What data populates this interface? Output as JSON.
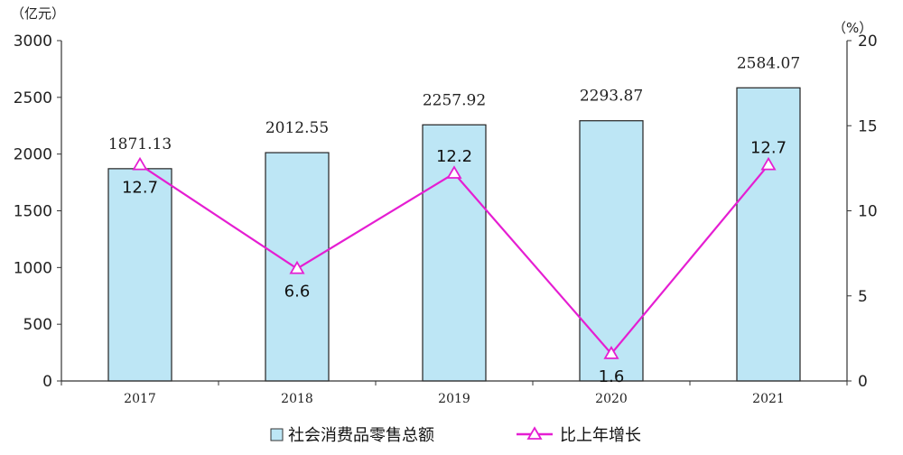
{
  "chart_data": {
    "type": "bar+line",
    "categories": [
      "2017",
      "2018",
      "2019",
      "2020",
      "2021"
    ],
    "left_unit": "（亿元）",
    "right_unit": "（%）",
    "left_axis": {
      "ylim": [
        0,
        3000
      ],
      "ticks": [
        "0",
        "500",
        "1000",
        "1500",
        "2000",
        "2500",
        "3000"
      ]
    },
    "right_axis": {
      "ylim": [
        0,
        20
      ],
      "ticks": [
        "0",
        "5",
        "10",
        "15",
        "20"
      ]
    },
    "series": [
      {
        "name": "社会消费品零售总额",
        "type": "bar",
        "axis": "left",
        "color": "#BDE6F5",
        "values": [
          1871.13,
          2012.55,
          2257.92,
          2293.87,
          2584.07
        ],
        "labels": [
          "1871.13",
          "2012.55",
          "2257.92",
          "2293.87",
          "2584.07"
        ]
      },
      {
        "name": "比上年增长",
        "type": "line",
        "axis": "right",
        "color": "#E51ED2",
        "marker": "triangle",
        "values": [
          12.7,
          6.6,
          12.2,
          1.6,
          12.7
        ],
        "labels": [
          "12.7",
          "6.6",
          "12.2",
          "1.6",
          "12.7"
        ]
      }
    ],
    "legend": {
      "position": "bottom"
    },
    "grid": false
  }
}
